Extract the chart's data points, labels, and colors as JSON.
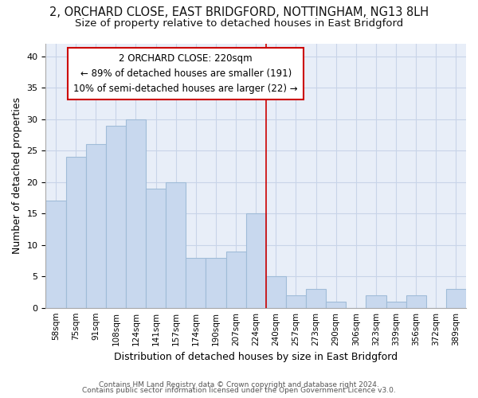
{
  "title": "2, ORCHARD CLOSE, EAST BRIDGFORD, NOTTINGHAM, NG13 8LH",
  "subtitle": "Size of property relative to detached houses in East Bridgford",
  "xlabel": "Distribution of detached houses by size in East Bridgford",
  "ylabel": "Number of detached properties",
  "categories": [
    "58sqm",
    "75sqm",
    "91sqm",
    "108sqm",
    "124sqm",
    "141sqm",
    "157sqm",
    "174sqm",
    "190sqm",
    "207sqm",
    "224sqm",
    "240sqm",
    "257sqm",
    "273sqm",
    "290sqm",
    "306sqm",
    "323sqm",
    "339sqm",
    "356sqm",
    "372sqm",
    "389sqm"
  ],
  "values": [
    17,
    24,
    26,
    29,
    30,
    19,
    20,
    8,
    8,
    9,
    15,
    5,
    2,
    3,
    1,
    0,
    2,
    1,
    2,
    0,
    3
  ],
  "bar_color": "#c8d8ee",
  "bar_edge_color": "#a0bcd8",
  "vline_x_index": 10.5,
  "vline_color": "#cc0000",
  "annotation_text": "2 ORCHARD CLOSE: 220sqm\n← 89% of detached houses are smaller (191)\n10% of semi-detached houses are larger (22) →",
  "annotation_box_edge_color": "#cc0000",
  "ylim": [
    0,
    42
  ],
  "yticks": [
    0,
    5,
    10,
    15,
    20,
    25,
    30,
    35,
    40
  ],
  "grid_color": "#c8d4e8",
  "background_color": "#e8eef8",
  "fig_background_color": "#ffffff",
  "footnote1": "Contains HM Land Registry data © Crown copyright and database right 2024.",
  "footnote2": "Contains public sector information licensed under the Open Government Licence v3.0.",
  "title_fontsize": 10.5,
  "subtitle_fontsize": 9.5,
  "xlabel_fontsize": 9,
  "ylabel_fontsize": 9,
  "annot_fontsize": 8.5
}
